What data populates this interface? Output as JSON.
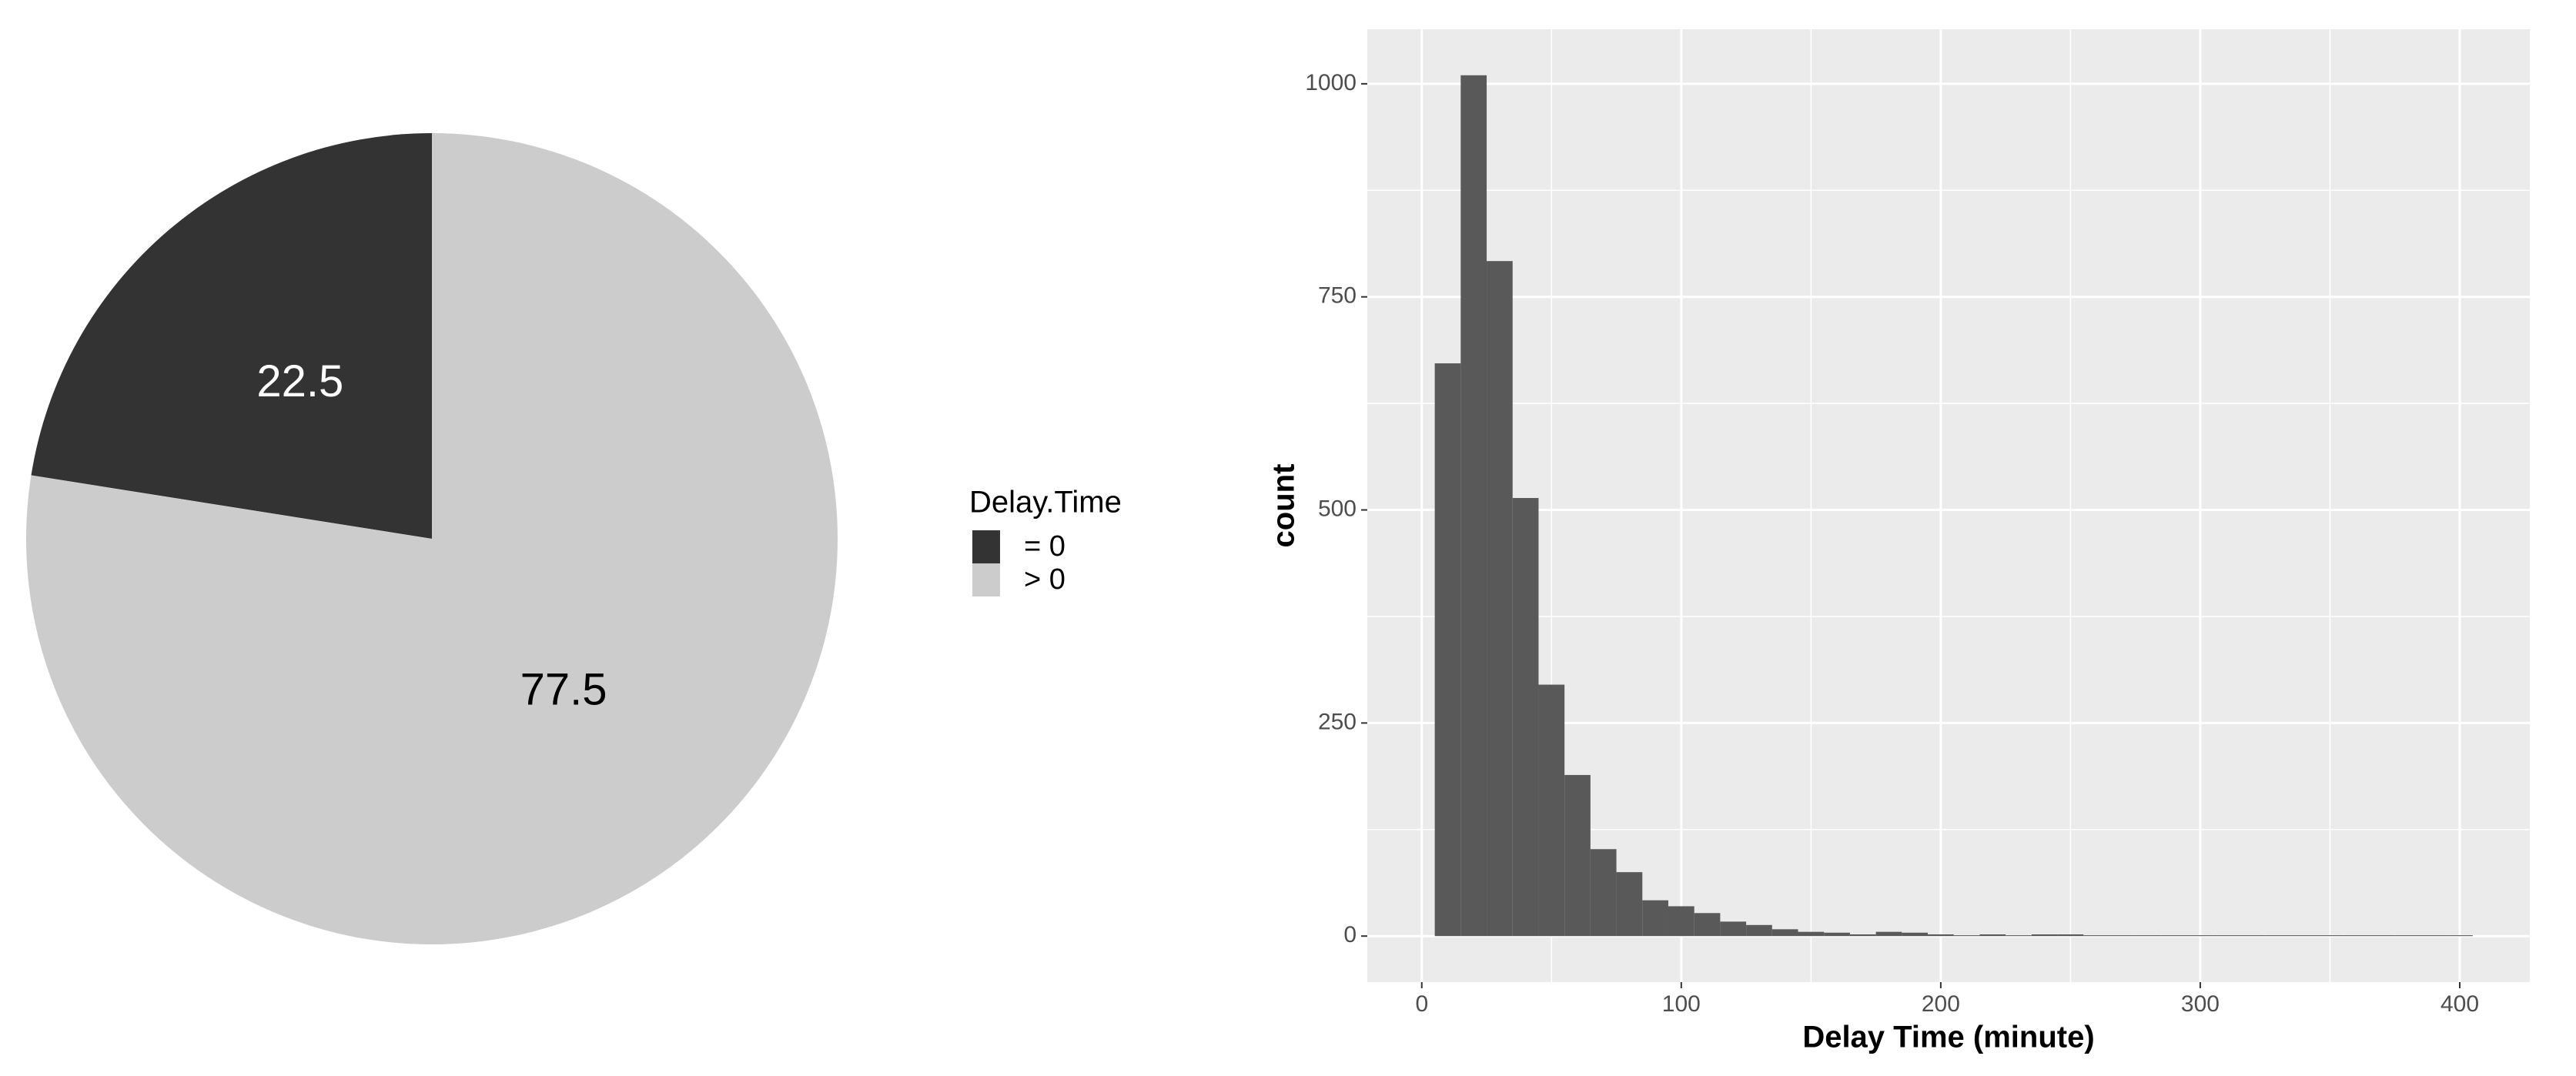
{
  "chart_data": [
    {
      "type": "pie",
      "legend_title": "Delay.Time",
      "categories": [
        "= 0",
        "> 0"
      ],
      "values": [
        22.5,
        77.5
      ],
      "colors": [
        "#333333",
        "#cccccc"
      ],
      "legend": "right"
    },
    {
      "type": "histogram",
      "xlabel": "Delay Time (minute)",
      "ylabel": "count",
      "color": "#595959",
      "bins": [
        5,
        15,
        25,
        35,
        45,
        55,
        65,
        75,
        85,
        95,
        105,
        115,
        125,
        135,
        145,
        155,
        165,
        175,
        185,
        195,
        205,
        215,
        225,
        235,
        245,
        255,
        265,
        275,
        285,
        295,
        305,
        315,
        325,
        335,
        345,
        355,
        365,
        375,
        385,
        395,
        405
      ],
      "values": [
        672,
        1010,
        792,
        514,
        295,
        189,
        102,
        75,
        42,
        35,
        27,
        17,
        13,
        8,
        5,
        4,
        2,
        5,
        4,
        2,
        1,
        2,
        1,
        2,
        2,
        1,
        1,
        1,
        1,
        1,
        1,
        1,
        1,
        1,
        1,
        1,
        1,
        1,
        1,
        1
      ],
      "xlim": [
        -21,
        427
      ],
      "ylim": [
        -54,
        1064
      ],
      "xticks": [
        0,
        100,
        200,
        300,
        400
      ],
      "yticks": [
        0,
        250,
        500,
        750,
        1000
      ],
      "grid": true
    }
  ]
}
